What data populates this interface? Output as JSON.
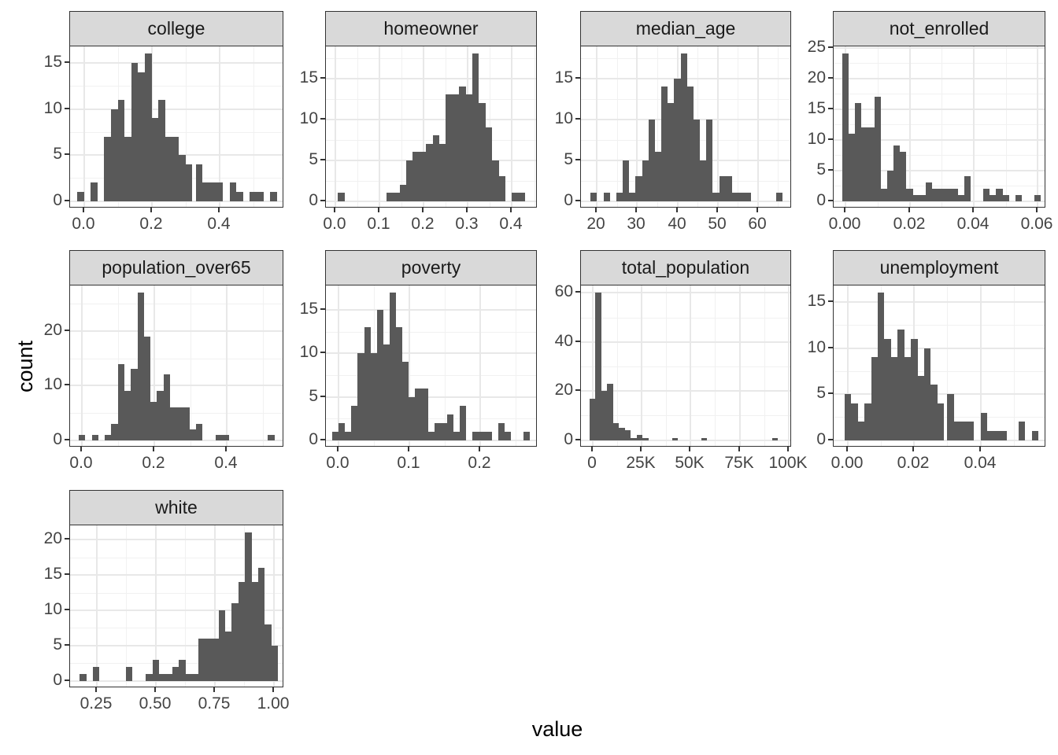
{
  "chart_data": {
    "type": "bar",
    "subtype": "faceted-histogram",
    "xlabel": "value",
    "ylabel": "count",
    "grid": true,
    "legend": "none",
    "facet_columns": 4,
    "colors": {
      "bar_fill": "#595959",
      "strip_background": "#d9d9d9",
      "strip_text": "#1a1a1a",
      "panel_background": "#ffffff",
      "panel_border": "#333333",
      "grid_major": "#e8e8e8",
      "grid_minor": "#f1f1f1",
      "tick_label": "#444444",
      "tick_mark": "#333333",
      "axis_title": "#000000"
    },
    "facets": [
      {
        "title": "college",
        "xlim": [
          -0.041,
          0.5915
        ],
        "binwidth": 0.02,
        "xticks": [
          0,
          0.2,
          0.4
        ],
        "xtick_labels": [
          "0.0",
          "0.2",
          "0.4"
        ],
        "xminor": [
          0.1,
          0.3,
          0.5
        ],
        "ylim": [
          -0.8,
          16.8
        ],
        "yticks": [
          0,
          5,
          10,
          15
        ],
        "ytick_labels": [
          "0",
          "5",
          "10",
          "15"
        ],
        "yminor": [
          2.5,
          7.5,
          12.5
        ],
        "bars": [
          [
            -0.02,
            1
          ],
          [
            0.02,
            2
          ],
          [
            0.06,
            7
          ],
          [
            0.08,
            10
          ],
          [
            0.1,
            11
          ],
          [
            0.12,
            7
          ],
          [
            0.14,
            15
          ],
          [
            0.16,
            14
          ],
          [
            0.18,
            16
          ],
          [
            0.2,
            9
          ],
          [
            0.22,
            11
          ],
          [
            0.24,
            7
          ],
          [
            0.26,
            7
          ],
          [
            0.28,
            5
          ],
          [
            0.3,
            4
          ],
          [
            0.33,
            4
          ],
          [
            0.35,
            2
          ],
          [
            0.37,
            2
          ],
          [
            0.39,
            2
          ],
          [
            0.43,
            2
          ],
          [
            0.45,
            1
          ],
          [
            0.49,
            1
          ],
          [
            0.51,
            1
          ],
          [
            0.55,
            1
          ]
        ]
      },
      {
        "title": "homeowner",
        "xlim": [
          -0.022,
          0.458
        ],
        "binwidth": 0.015,
        "xticks": [
          0,
          0.1,
          0.2,
          0.3,
          0.4
        ],
        "xtick_labels": [
          "0.0",
          "0.1",
          "0.2",
          "0.3",
          "0.4"
        ],
        "xminor": [
          0.05,
          0.15,
          0.25,
          0.35,
          0.45
        ],
        "ylim": [
          -0.9,
          18.9
        ],
        "yticks": [
          0,
          5,
          10,
          15
        ],
        "ytick_labels": [
          "0",
          "5",
          "10",
          "15"
        ],
        "yminor": [
          2.5,
          7.5,
          12.5,
          17.5
        ],
        "bars": [
          [
            0.005,
            1
          ],
          [
            0.115,
            1
          ],
          [
            0.13,
            1
          ],
          [
            0.145,
            2
          ],
          [
            0.16,
            5
          ],
          [
            0.175,
            6
          ],
          [
            0.19,
            6
          ],
          [
            0.205,
            7
          ],
          [
            0.22,
            8
          ],
          [
            0.235,
            7
          ],
          [
            0.25,
            13
          ],
          [
            0.265,
            13
          ],
          [
            0.28,
            14
          ],
          [
            0.295,
            13
          ],
          [
            0.31,
            18
          ],
          [
            0.325,
            12
          ],
          [
            0.34,
            9
          ],
          [
            0.355,
            5
          ],
          [
            0.37,
            3
          ],
          [
            0.4,
            1
          ],
          [
            0.415,
            1
          ]
        ]
      },
      {
        "title": "median_age",
        "xlim": [
          16.0,
          68.5
        ],
        "binwidth": 1.6,
        "xticks": [
          20,
          30,
          40,
          50,
          60
        ],
        "xtick_labels": [
          "20",
          "30",
          "40",
          "50",
          "60"
        ],
        "xminor": [
          25,
          35,
          45,
          55,
          65
        ],
        "ylim": [
          -0.9,
          18.9
        ],
        "yticks": [
          0,
          5,
          10,
          15
        ],
        "ytick_labels": [
          "0",
          "5",
          "10",
          "15"
        ],
        "yminor": [
          2.5,
          7.5,
          12.5,
          17.5
        ],
        "bars": [
          [
            18.4,
            1
          ],
          [
            21.6,
            1
          ],
          [
            24.8,
            1
          ],
          [
            26.4,
            5
          ],
          [
            28.0,
            1
          ],
          [
            29.6,
            3
          ],
          [
            31.2,
            5
          ],
          [
            32.8,
            10
          ],
          [
            34.4,
            6
          ],
          [
            36.0,
            14
          ],
          [
            37.6,
            12
          ],
          [
            39.2,
            15
          ],
          [
            40.8,
            18
          ],
          [
            42.4,
            14
          ],
          [
            44.0,
            10
          ],
          [
            45.6,
            5
          ],
          [
            47.2,
            10
          ],
          [
            48.8,
            1
          ],
          [
            50.4,
            3
          ],
          [
            52.0,
            3
          ],
          [
            53.6,
            1
          ],
          [
            55.2,
            1
          ],
          [
            56.8,
            1
          ],
          [
            64.5,
            1
          ]
        ]
      },
      {
        "title": "not_enrolled",
        "xlim": [
          -0.0037,
          0.0626
        ],
        "binwidth": 0.002,
        "xticks": [
          0,
          0.02,
          0.04,
          0.06
        ],
        "xtick_labels": [
          "0.00",
          "0.02",
          "0.04",
          "0.06"
        ],
        "xminor": [
          0.01,
          0.03,
          0.05
        ],
        "ylim": [
          -1.2,
          25.2
        ],
        "yticks": [
          0,
          5,
          10,
          15,
          20,
          25
        ],
        "ytick_labels": [
          "0",
          "5",
          "10",
          "15",
          "20",
          "25"
        ],
        "yminor": [
          2.5,
          7.5,
          12.5,
          17.5,
          22.5
        ],
        "bars": [
          [
            -0.001,
            24
          ],
          [
            0.001,
            11
          ],
          [
            0.003,
            16
          ],
          [
            0.005,
            12
          ],
          [
            0.007,
            12
          ],
          [
            0.009,
            17
          ],
          [
            0.011,
            2
          ],
          [
            0.013,
            5
          ],
          [
            0.015,
            9
          ],
          [
            0.017,
            8
          ],
          [
            0.019,
            2
          ],
          [
            0.021,
            1
          ],
          [
            0.023,
            1
          ],
          [
            0.025,
            3
          ],
          [
            0.027,
            2
          ],
          [
            0.029,
            2
          ],
          [
            0.031,
            2
          ],
          [
            0.033,
            2
          ],
          [
            0.035,
            1
          ],
          [
            0.037,
            4
          ],
          [
            0.043,
            2
          ],
          [
            0.045,
            1
          ],
          [
            0.047,
            2
          ],
          [
            0.049,
            1
          ],
          [
            0.053,
            1
          ],
          [
            0.059,
            1
          ]
        ]
      },
      {
        "title": "population_over65",
        "xlim": [
          -0.033,
          0.558
        ],
        "binwidth": 0.018,
        "xticks": [
          0,
          0.2,
          0.4
        ],
        "xtick_labels": [
          "0.0",
          "0.2",
          "0.4"
        ],
        "xminor": [
          0.1,
          0.3,
          0.5
        ],
        "ylim": [
          -1.35,
          28.35
        ],
        "yticks": [
          0,
          10,
          20
        ],
        "ytick_labels": [
          "0",
          "10",
          "20"
        ],
        "yminor": [
          5,
          15,
          25
        ],
        "bars": [
          [
            -0.009,
            1
          ],
          [
            0.027,
            1
          ],
          [
            0.063,
            1
          ],
          [
            0.081,
            3
          ],
          [
            0.099,
            14
          ],
          [
            0.117,
            9
          ],
          [
            0.135,
            13
          ],
          [
            0.153,
            27
          ],
          [
            0.171,
            19
          ],
          [
            0.189,
            7
          ],
          [
            0.207,
            9
          ],
          [
            0.225,
            12
          ],
          [
            0.243,
            6
          ],
          [
            0.261,
            6
          ],
          [
            0.279,
            6
          ],
          [
            0.297,
            2
          ],
          [
            0.315,
            3
          ],
          [
            0.369,
            1
          ],
          [
            0.387,
            1
          ],
          [
            0.513,
            1
          ]
        ]
      },
      {
        "title": "poverty",
        "xlim": [
          -0.018,
          0.281
        ],
        "binwidth": 0.009,
        "xticks": [
          0,
          0.1,
          0.2
        ],
        "xtick_labels": [
          "0.0",
          "0.1",
          "0.2"
        ],
        "xminor": [
          0.05,
          0.15,
          0.25
        ],
        "ylim": [
          -0.85,
          17.85
        ],
        "yticks": [
          0,
          5,
          10,
          15
        ],
        "ytick_labels": [
          "0",
          "5",
          "10",
          "15"
        ],
        "yminor": [
          2.5,
          7.5,
          12.5
        ],
        "bars": [
          [
            -0.009,
            1
          ],
          [
            0.0,
            2
          ],
          [
            0.009,
            1
          ],
          [
            0.018,
            4
          ],
          [
            0.027,
            10
          ],
          [
            0.036,
            13
          ],
          [
            0.045,
            10
          ],
          [
            0.054,
            15
          ],
          [
            0.063,
            11
          ],
          [
            0.072,
            17
          ],
          [
            0.081,
            13
          ],
          [
            0.09,
            9
          ],
          [
            0.099,
            5
          ],
          [
            0.108,
            6
          ],
          [
            0.117,
            6
          ],
          [
            0.126,
            1
          ],
          [
            0.135,
            2
          ],
          [
            0.144,
            2
          ],
          [
            0.153,
            3
          ],
          [
            0.162,
            1
          ],
          [
            0.171,
            4
          ],
          [
            0.189,
            1
          ],
          [
            0.198,
            1
          ],
          [
            0.207,
            1
          ],
          [
            0.225,
            2
          ],
          [
            0.234,
            1
          ],
          [
            0.261,
            1
          ]
        ]
      },
      {
        "title": "total_population",
        "xlim": [
          -5900,
          101650
        ],
        "binwidth": 3000,
        "xticks": [
          0,
          25000,
          50000,
          75000,
          100000
        ],
        "xtick_labels": [
          "0",
          "25K",
          "50K",
          "75K",
          "100K"
        ],
        "xminor": [
          12500,
          37500,
          62500,
          87500
        ],
        "ylim": [
          -3,
          63
        ],
        "yticks": [
          0,
          20,
          40,
          60
        ],
        "ytick_labels": [
          "0",
          "20",
          "40",
          "60"
        ],
        "yminor": [
          10,
          30,
          50
        ],
        "bars": [
          [
            -1500,
            17
          ],
          [
            1500,
            60
          ],
          [
            4500,
            20
          ],
          [
            7500,
            23
          ],
          [
            10500,
            7
          ],
          [
            13500,
            5
          ],
          [
            16500,
            4
          ],
          [
            19500,
            1
          ],
          [
            22500,
            2
          ],
          [
            25500,
            1
          ],
          [
            40500,
            1
          ],
          [
            55500,
            1
          ],
          [
            91500,
            1
          ]
        ]
      },
      {
        "title": "unemployment",
        "xlim": [
          -0.0043,
          0.0598
        ],
        "binwidth": 0.002,
        "xticks": [
          0,
          0.02,
          0.04
        ],
        "xtick_labels": [
          "0.00",
          "0.02",
          "0.04"
        ],
        "xminor": [
          0.01,
          0.03,
          0.05
        ],
        "ylim": [
          -0.8,
          16.8
        ],
        "yticks": [
          0,
          5,
          10,
          15
        ],
        "ytick_labels": [
          "0",
          "5",
          "10",
          "15"
        ],
        "yminor": [
          2.5,
          7.5,
          12.5
        ],
        "bars": [
          [
            -0.001,
            5
          ],
          [
            0.001,
            4
          ],
          [
            0.003,
            2
          ],
          [
            0.005,
            4
          ],
          [
            0.007,
            9
          ],
          [
            0.009,
            16
          ],
          [
            0.011,
            11
          ],
          [
            0.013,
            9
          ],
          [
            0.015,
            12
          ],
          [
            0.017,
            9
          ],
          [
            0.019,
            11
          ],
          [
            0.021,
            7
          ],
          [
            0.023,
            10
          ],
          [
            0.025,
            6
          ],
          [
            0.027,
            4
          ],
          [
            0.03,
            5
          ],
          [
            0.032,
            2
          ],
          [
            0.034,
            2
          ],
          [
            0.036,
            2
          ],
          [
            0.04,
            3
          ],
          [
            0.042,
            1
          ],
          [
            0.044,
            1
          ],
          [
            0.046,
            1
          ],
          [
            0.0515,
            2
          ],
          [
            0.0555,
            1
          ]
        ]
      },
      {
        "title": "white",
        "xlim": [
          0.137,
          1.044
        ],
        "binwidth": 0.028,
        "xticks": [
          0.25,
          0.5,
          0.75,
          1.0
        ],
        "xtick_labels": [
          "0.25",
          "0.50",
          "0.75",
          "1.00"
        ],
        "xminor": [
          0.375,
          0.625,
          0.875
        ],
        "ylim": [
          -1.05,
          22.05
        ],
        "yticks": [
          0,
          5,
          10,
          15,
          20
        ],
        "ytick_labels": [
          "0",
          "5",
          "10",
          "15",
          "20"
        ],
        "yminor": [
          2.5,
          7.5,
          12.5,
          17.5
        ],
        "bars": [
          [
            0.178,
            1
          ],
          [
            0.234,
            2
          ],
          [
            0.374,
            2
          ],
          [
            0.458,
            1
          ],
          [
            0.486,
            3
          ],
          [
            0.514,
            1
          ],
          [
            0.542,
            1
          ],
          [
            0.57,
            2
          ],
          [
            0.598,
            3
          ],
          [
            0.626,
            1
          ],
          [
            0.654,
            1
          ],
          [
            0.682,
            6
          ],
          [
            0.71,
            6
          ],
          [
            0.738,
            6
          ],
          [
            0.766,
            10
          ],
          [
            0.794,
            7
          ],
          [
            0.822,
            11
          ],
          [
            0.85,
            14
          ],
          [
            0.878,
            21
          ],
          [
            0.906,
            14
          ],
          [
            0.934,
            16
          ],
          [
            0.962,
            8
          ],
          [
            0.99,
            5
          ]
        ]
      }
    ]
  }
}
